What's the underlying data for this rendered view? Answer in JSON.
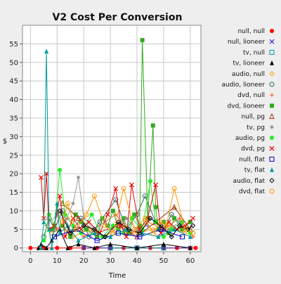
{
  "chart_data": {
    "type": "line",
    "title": "V2 Cost Per Conversion",
    "xlabel": "Time",
    "ylabel": "$",
    "xlim": [
      -3,
      64
    ],
    "ylim": [
      -1,
      60
    ],
    "xticks": [
      0,
      10,
      20,
      30,
      40,
      50,
      60
    ],
    "yticks": [
      0,
      5,
      10,
      15,
      20,
      25,
      30,
      35,
      40,
      45,
      50,
      55
    ],
    "grid": true,
    "legend_position": "right",
    "series": [
      {
        "name": "null, null",
        "color": "#ff0000",
        "marker": "circle-filled",
        "points": [
          [
            0,
            0
          ],
          [
            5,
            0
          ],
          [
            10,
            0
          ],
          [
            15,
            0
          ],
          [
            20,
            0
          ],
          [
            25,
            0
          ],
          [
            30,
            0
          ],
          [
            35,
            0
          ],
          [
            40,
            0
          ],
          [
            45,
            0
          ],
          [
            50,
            0
          ],
          [
            55,
            0
          ],
          [
            60,
            0
          ],
          [
            62,
            0
          ]
        ]
      },
      {
        "name": "null, lioneer",
        "color": "#3333cc",
        "marker": "x",
        "points": [
          [
            20,
            0
          ],
          [
            30,
            0
          ],
          [
            40,
            0
          ],
          [
            50,
            0
          ],
          [
            60,
            0
          ]
        ]
      },
      {
        "name": "tv, null",
        "color": "#009999",
        "marker": "square-open",
        "points": [
          [
            30,
            0
          ],
          [
            40,
            0
          ],
          [
            50,
            0
          ]
        ]
      },
      {
        "name": "tv, lioneer",
        "color": "#000000",
        "marker": "triangle-filled",
        "points": [
          [
            3,
            0
          ],
          [
            4,
            1
          ],
          [
            6,
            0
          ],
          [
            8,
            2
          ],
          [
            11,
            5
          ],
          [
            14,
            0
          ],
          [
            18,
            1
          ],
          [
            24,
            0
          ],
          [
            30,
            1
          ],
          [
            40,
            0
          ],
          [
            50,
            1
          ],
          [
            60,
            0
          ]
        ]
      },
      {
        "name": "audio, null",
        "color": "#ff9900",
        "marker": "diamond-open",
        "points": [
          [
            8,
            4
          ],
          [
            12,
            6
          ],
          [
            16,
            3
          ],
          [
            22,
            5
          ],
          [
            28,
            3
          ],
          [
            34,
            6
          ],
          [
            40,
            4
          ],
          [
            46,
            5
          ],
          [
            52,
            6
          ],
          [
            58,
            4
          ]
        ]
      },
      {
        "name": "audio, lioneer",
        "color": "#336666",
        "marker": "circle-open",
        "points": [
          [
            5,
            3
          ],
          [
            7,
            8
          ],
          [
            9,
            5
          ],
          [
            12,
            10
          ],
          [
            15,
            4
          ],
          [
            19,
            8
          ],
          [
            22,
            3
          ],
          [
            26,
            7
          ],
          [
            32,
            13
          ],
          [
            36,
            5
          ],
          [
            40,
            9
          ],
          [
            43,
            14
          ],
          [
            47,
            7
          ],
          [
            50,
            5
          ],
          [
            53,
            9
          ],
          [
            57,
            6
          ],
          [
            61,
            4
          ]
        ]
      },
      {
        "name": "dvd, null",
        "color": "#ff6633",
        "marker": "plus",
        "points": [
          [
            10,
            5
          ],
          [
            14,
            8
          ],
          [
            20,
            3
          ],
          [
            26,
            6
          ],
          [
            32,
            9
          ],
          [
            38,
            4
          ],
          [
            44,
            7
          ],
          [
            50,
            5
          ],
          [
            56,
            8
          ],
          [
            61,
            3
          ]
        ]
      },
      {
        "name": "dvd, lioneer",
        "color": "#33aa22",
        "marker": "square-filled",
        "points": [
          [
            8,
            5
          ],
          [
            10,
            9
          ],
          [
            12,
            6
          ],
          [
            15,
            3
          ],
          [
            17,
            9
          ],
          [
            19,
            7
          ],
          [
            21,
            5
          ],
          [
            25,
            3
          ],
          [
            27,
            8
          ],
          [
            29,
            6
          ],
          [
            31,
            10
          ],
          [
            33,
            5
          ],
          [
            35,
            8
          ],
          [
            37,
            4
          ],
          [
            39,
            9
          ],
          [
            41,
            6
          ],
          [
            42,
            56
          ],
          [
            44,
            8
          ],
          [
            46,
            33
          ],
          [
            47,
            11
          ],
          [
            48,
            5
          ],
          [
            50,
            7
          ],
          [
            52,
            4
          ],
          [
            54,
            8
          ],
          [
            57,
            5
          ],
          [
            60,
            7
          ]
        ]
      },
      {
        "name": "null, pg",
        "color": "#993300",
        "marker": "triangle-open",
        "points": [
          [
            12,
            12
          ],
          [
            18,
            8
          ],
          [
            25,
            4
          ],
          [
            33,
            6
          ],
          [
            40,
            3
          ],
          [
            47,
            7
          ],
          [
            54,
            11
          ],
          [
            60,
            5
          ]
        ]
      },
      {
        "name": "tv, pg",
        "color": "#999999",
        "marker": "diamond-filled",
        "points": [
          [
            6,
            6
          ],
          [
            10,
            9
          ],
          [
            13,
            7
          ],
          [
            16,
            12
          ],
          [
            18,
            19
          ],
          [
            20,
            8
          ],
          [
            24,
            5
          ],
          [
            28,
            7
          ],
          [
            32,
            4
          ],
          [
            36,
            8
          ],
          [
            40,
            5
          ],
          [
            44,
            6
          ],
          [
            48,
            3
          ],
          [
            52,
            5
          ],
          [
            56,
            7
          ],
          [
            60,
            4
          ]
        ]
      },
      {
        "name": "audio, pg",
        "color": "#22ee22",
        "marker": "circle-filled",
        "points": [
          [
            5,
            2
          ],
          [
            7,
            9
          ],
          [
            9,
            6
          ],
          [
            11,
            21
          ],
          [
            13,
            9
          ],
          [
            16,
            6
          ],
          [
            19,
            4
          ],
          [
            23,
            9
          ],
          [
            27,
            3
          ],
          [
            31,
            6
          ],
          [
            35,
            4
          ],
          [
            38,
            8
          ],
          [
            42,
            5
          ],
          [
            45,
            18
          ],
          [
            47,
            7
          ],
          [
            50,
            3
          ],
          [
            53,
            5
          ],
          [
            57,
            7
          ],
          [
            60,
            4
          ]
        ]
      },
      {
        "name": "dvd, pg",
        "color": "#ee0000",
        "marker": "x",
        "points": [
          [
            4,
            19
          ],
          [
            5,
            8
          ],
          [
            6,
            20
          ],
          [
            7,
            5
          ],
          [
            9,
            6
          ],
          [
            11,
            14
          ],
          [
            13,
            3
          ],
          [
            16,
            8
          ],
          [
            19,
            5
          ],
          [
            22,
            7
          ],
          [
            26,
            4
          ],
          [
            29,
            9
          ],
          [
            32,
            16
          ],
          [
            34,
            6
          ],
          [
            36,
            3
          ],
          [
            38,
            17
          ],
          [
            41,
            5
          ],
          [
            44,
            8
          ],
          [
            47,
            17
          ],
          [
            49,
            4
          ],
          [
            52,
            7
          ],
          [
            55,
            5
          ],
          [
            58,
            6
          ],
          [
            61,
            8
          ]
        ]
      },
      {
        "name": "null, flat",
        "color": "#0000cc",
        "marker": "square-open",
        "points": [
          [
            9,
            3
          ],
          [
            17,
            5
          ],
          [
            25,
            2
          ],
          [
            33,
            4
          ],
          [
            41,
            3
          ],
          [
            49,
            5
          ],
          [
            57,
            3
          ]
        ]
      },
      {
        "name": "tv, flat",
        "color": "#009999",
        "marker": "triangle-filled",
        "points": [
          [
            4,
            0
          ],
          [
            5,
            7
          ],
          [
            6,
            53
          ],
          [
            7,
            5
          ],
          [
            8,
            0
          ],
          [
            10,
            12
          ],
          [
            11,
            4
          ],
          [
            14,
            6
          ],
          [
            18,
            2
          ],
          [
            24,
            4
          ],
          [
            30,
            3
          ],
          [
            36,
            5
          ],
          [
            42,
            4
          ],
          [
            48,
            3
          ],
          [
            54,
            5
          ],
          [
            60,
            3
          ]
        ]
      },
      {
        "name": "audio, flat",
        "color": "#000000",
        "marker": "diamond-open",
        "points": [
          [
            11,
            10
          ],
          [
            15,
            4
          ],
          [
            20,
            6
          ],
          [
            24,
            5
          ],
          [
            28,
            3
          ],
          [
            33,
            7
          ],
          [
            37,
            5
          ],
          [
            41,
            4
          ],
          [
            45,
            8
          ],
          [
            49,
            6
          ],
          [
            53,
            3
          ],
          [
            56,
            6
          ],
          [
            59,
            5
          ],
          [
            61,
            6
          ]
        ]
      },
      {
        "name": "dvd, flat",
        "color": "#ff9900",
        "marker": "circle-open",
        "points": [
          [
            12,
            7
          ],
          [
            14,
            12
          ],
          [
            17,
            5
          ],
          [
            21,
            9
          ],
          [
            24,
            14
          ],
          [
            28,
            6
          ],
          [
            31,
            4
          ],
          [
            35,
            16
          ],
          [
            39,
            5
          ],
          [
            43,
            8
          ],
          [
            46,
            4
          ],
          [
            49,
            7
          ],
          [
            51,
            6
          ],
          [
            54,
            16
          ],
          [
            58,
            5
          ],
          [
            61,
            4
          ]
        ]
      }
    ]
  }
}
